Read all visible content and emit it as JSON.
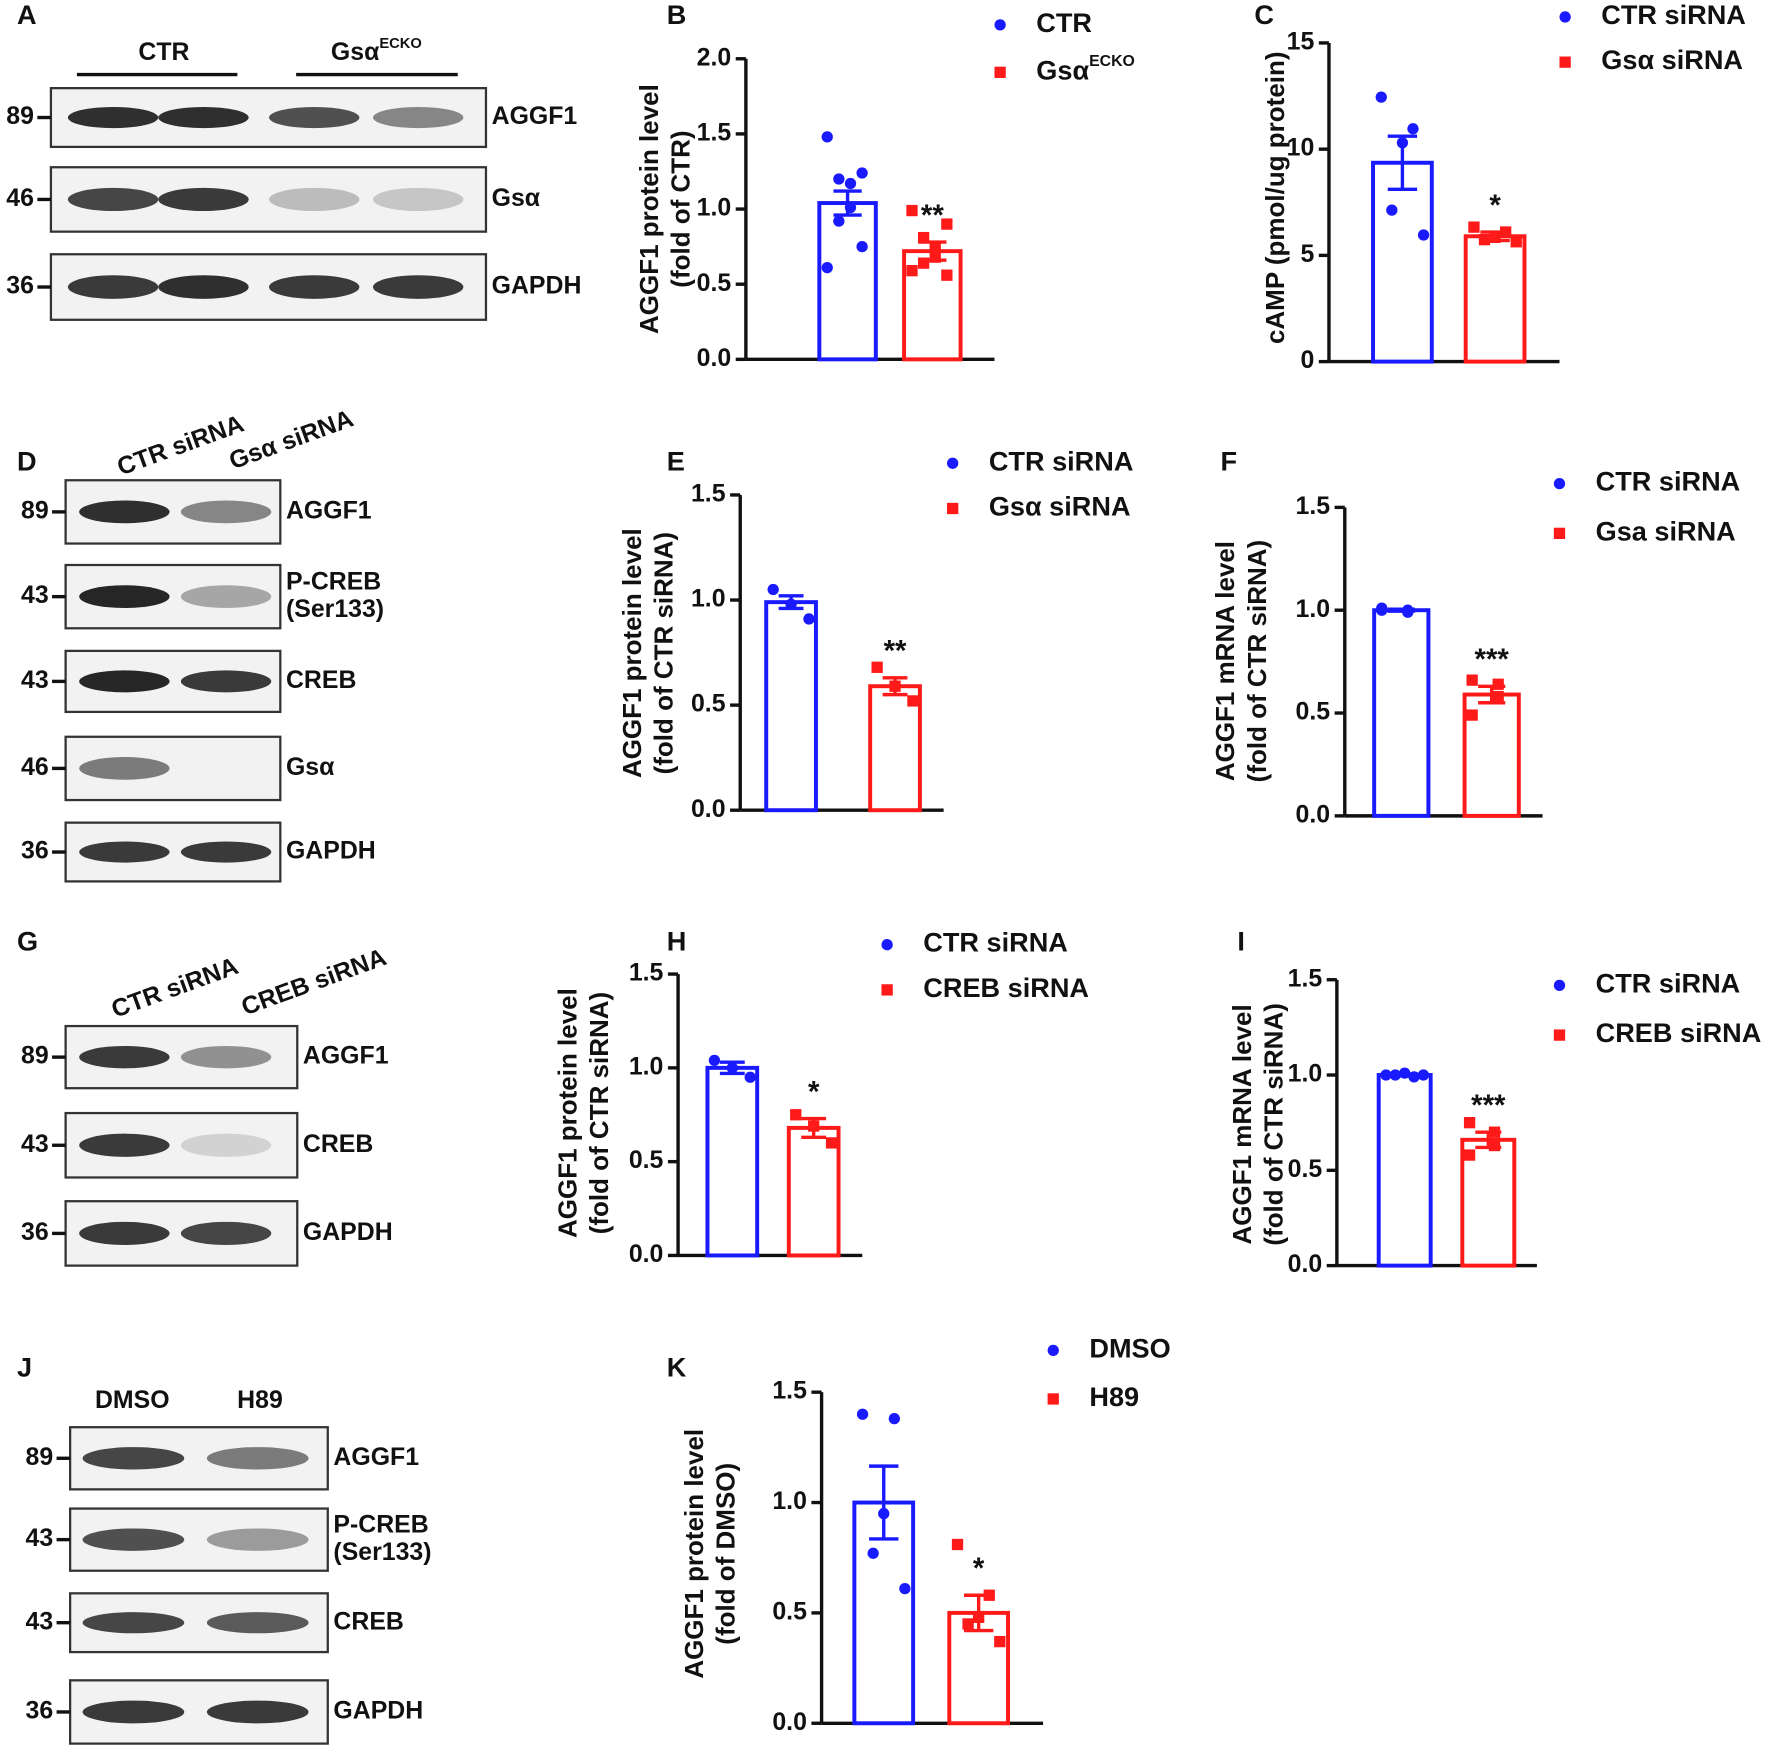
{
  "blots": [
    {
      "panel": "A",
      "lanes": [
        {
          "text": "CTR"
        },
        {
          "text": "Gsα",
          "sup": "ECKO"
        }
      ],
      "rows": [
        {
          "marker": 89,
          "protein": [
            "AGGF1"
          ]
        },
        {
          "marker": 46,
          "protein": [
            "Gsα"
          ]
        },
        {
          "marker": 36,
          "protein": [
            "GAPDH"
          ]
        }
      ]
    },
    {
      "panel": "D",
      "lanes": [
        {
          "text": "CTR siRNA"
        },
        {
          "text": "Gsα siRNA"
        }
      ],
      "rows": [
        {
          "marker": 89,
          "protein": [
            "AGGF1"
          ]
        },
        {
          "marker": 43,
          "protein": [
            "P-CREB",
            "(Ser133)"
          ]
        },
        {
          "marker": 43,
          "protein": [
            "CREB"
          ]
        },
        {
          "marker": 46,
          "protein": [
            "Gsα"
          ]
        },
        {
          "marker": 36,
          "protein": [
            "GAPDH"
          ]
        }
      ]
    },
    {
      "panel": "G",
      "lanes": [
        {
          "text": "CTR siRNA"
        },
        {
          "text": "CREB siRNA"
        }
      ],
      "rows": [
        {
          "marker": 89,
          "protein": [
            "AGGF1"
          ]
        },
        {
          "marker": 43,
          "protein": [
            "CREB"
          ]
        },
        {
          "marker": 36,
          "protein": [
            "GAPDH"
          ]
        }
      ]
    },
    {
      "panel": "J",
      "lanes": [
        {
          "text": "DMSO"
        },
        {
          "text": "H89"
        }
      ],
      "rows": [
        {
          "marker": 89,
          "protein": [
            "AGGF1"
          ]
        },
        {
          "marker": 43,
          "protein": [
            "P-CREB",
            "(Ser133)"
          ]
        },
        {
          "marker": 43,
          "protein": [
            "CREB"
          ]
        },
        {
          "marker": 36,
          "protein": [
            "GAPDH"
          ]
        }
      ]
    }
  ],
  "chart_data": [
    {
      "type": "bar",
      "panel": "B",
      "ylabel": [
        "AGGF1 protein level",
        "(fold of CTR)"
      ],
      "ylim": [
        0,
        2
      ],
      "yticks": [
        {
          "value": 0,
          "label": "0.0"
        },
        0.5,
        {
          "value": 1,
          "label": "1.0"
        },
        1.5,
        {
          "value": 2,
          "label": "2.0"
        }
      ],
      "annotation": "**",
      "series": [
        {
          "name": "CTR",
          "color": "#1a1aff",
          "value": 1.04,
          "error": 0.08,
          "points": [
            1.48,
            1.24,
            1.2,
            1.17,
            1.01,
            0.92,
            0.75,
            0.61
          ]
        },
        {
          "name": "Gsα",
          "name_sup": "ECKO",
          "color": "#ff1a1a",
          "value": 0.72,
          "error": 0.06,
          "points": [
            0.99,
            0.9,
            0.81,
            0.75,
            0.68,
            0.64,
            0.56,
            0.59
          ]
        }
      ]
    },
    {
      "type": "bar",
      "panel": "C",
      "ylabel": [
        "cAMP (pmol/ug protein)"
      ],
      "ylim": [
        0,
        15
      ],
      "yticks": [
        0,
        5,
        10,
        15
      ],
      "annotation": "*",
      "series": [
        {
          "name": "CTR siRNA",
          "color": "#1a1aff",
          "value": 9.36,
          "error": 1.25,
          "points": [
            12.45,
            10.96,
            10.3,
            7.13,
            5.96
          ]
        },
        {
          "name": "Gsα siRNA",
          "color": "#ff1a1a",
          "value": 5.9,
          "error": 0.2,
          "points": [
            6.33,
            6.1,
            5.85,
            5.74,
            5.64
          ]
        }
      ]
    },
    {
      "type": "bar",
      "panel": "E",
      "ylabel": [
        "AGGF1 protein level",
        "(fold of CTR siRNA)"
      ],
      "ylim": [
        0,
        1.5
      ],
      "yticks": [
        {
          "value": 0,
          "label": "0.0"
        },
        0.5,
        {
          "value": 1,
          "label": "1.0"
        },
        1.5
      ],
      "annotation": "**",
      "series": [
        {
          "name": "CTR siRNA",
          "color": "#1a1aff",
          "value": 0.99,
          "error": 0.03,
          "points": [
            1.05,
            0.98,
            0.91
          ]
        },
        {
          "name": "Gsα siRNA",
          "color": "#ff1a1a",
          "value": 0.59,
          "error": 0.04,
          "points": [
            0.68,
            0.59,
            0.52
          ]
        }
      ]
    },
    {
      "type": "bar",
      "panel": "F",
      "ylabel": [
        "AGGF1 mRNA level",
        "(fold of CTR siRNA)"
      ],
      "ylim": [
        0,
        1.5
      ],
      "yticks": [
        {
          "value": 0,
          "label": "0.0"
        },
        0.5,
        {
          "value": 1,
          "label": "1.0"
        },
        1.5
      ],
      "annotation": "***",
      "series": [
        {
          "name": "CTR siRNA",
          "color": "#1a1aff",
          "value": 1.0,
          "error": 0.005,
          "points": [
            1.0,
            1.0,
            0.99,
            1.01
          ]
        },
        {
          "name": "Gsa siRNA",
          "color": "#ff1a1a",
          "value": 0.59,
          "error": 0.04,
          "points": [
            0.66,
            0.64,
            0.58,
            0.49
          ]
        }
      ]
    },
    {
      "type": "bar",
      "panel": "H",
      "ylabel": [
        "AGGF1 protein level",
        "(fold of CTR siRNA)"
      ],
      "ylim": [
        0,
        1.5
      ],
      "yticks": [
        {
          "value": 0,
          "label": "0.0"
        },
        0.5,
        {
          "value": 1,
          "label": "1.0"
        },
        1.5
      ],
      "annotation": "*",
      "series": [
        {
          "name": "CTR siRNA",
          "color": "#1a1aff",
          "value": 1.0,
          "error": 0.03,
          "points": [
            1.04,
            1.0,
            0.95
          ]
        },
        {
          "name": "CREB siRNA",
          "color": "#ff1a1a",
          "value": 0.68,
          "error": 0.05,
          "points": [
            0.75,
            0.69,
            0.6
          ]
        }
      ]
    },
    {
      "type": "bar",
      "panel": "I",
      "ylabel": [
        "AGGF1 mRNA level",
        "(fold of CTR siRNA)"
      ],
      "ylim": [
        0,
        1.5
      ],
      "yticks": [
        {
          "value": 0,
          "label": "0.0"
        },
        0.5,
        {
          "value": 1,
          "label": "1.0"
        },
        1.5
      ],
      "annotation": "***",
      "series": [
        {
          "name": "CTR siRNA",
          "color": "#1a1aff",
          "value": 1.0,
          "error": 0.005,
          "points": [
            1.0,
            0.99,
            1.01,
            1.0,
            1.0
          ]
        },
        {
          "name": "CREB siRNA",
          "color": "#ff1a1a",
          "value": 0.66,
          "error": 0.04,
          "points": [
            0.75,
            0.7,
            0.63,
            0.58
          ]
        }
      ]
    },
    {
      "type": "bar",
      "panel": "K",
      "ylabel": [
        "AGGF1 protein level",
        "(fold of DMSO)"
      ],
      "ylim": [
        0,
        1.5
      ],
      "yticks": [
        {
          "value": 0,
          "label": "0.0"
        },
        0.5,
        {
          "value": 1,
          "label": "1.0"
        },
        1.5
      ],
      "annotation": "*",
      "series": [
        {
          "name": "DMSO",
          "color": "#1a1aff",
          "value": 1.0,
          "error": 0.165,
          "points": [
            1.4,
            1.38,
            0.95,
            0.77,
            0.61
          ]
        },
        {
          "name": "H89",
          "color": "#ff1a1a",
          "value": 0.5,
          "error": 0.08,
          "points": [
            0.81,
            0.58,
            0.48,
            0.45,
            0.37
          ]
        }
      ]
    }
  ]
}
